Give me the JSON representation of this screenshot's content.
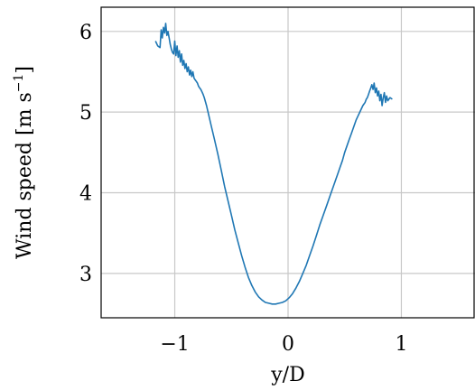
{
  "chart_data": {
    "type": "line",
    "title": "",
    "xlabel": "y/D",
    "ylabel_main": "Wind speed [m s",
    "ylabel_exp": "−1",
    "ylabel_close": "]",
    "xlim": [
      -1.65,
      1.65
    ],
    "ylim": [
      2.45,
      6.3
    ],
    "xticks": [
      {
        "value": -1,
        "label": "−1"
      },
      {
        "value": 0,
        "label": "0"
      },
      {
        "value": 1,
        "label": "1"
      }
    ],
    "yticks": [
      {
        "value": 3,
        "label": "3"
      },
      {
        "value": 4,
        "label": "4"
      },
      {
        "value": 5,
        "label": "5"
      },
      {
        "value": 6,
        "label": "6"
      }
    ],
    "grid": true,
    "series_color": "#1f77b4",
    "series": [
      {
        "x": [
          -1.17,
          -1.15,
          -1.13,
          -1.12,
          -1.11,
          -1.1,
          -1.09,
          -1.08,
          -1.07,
          -1.06,
          -1.05,
          -1.04,
          -1.03,
          -1.02,
          -1.01,
          -1.0,
          -0.99,
          -0.98,
          -0.97,
          -0.96,
          -0.95,
          -0.94,
          -0.93,
          -0.92,
          -0.91,
          -0.9,
          -0.89,
          -0.88,
          -0.87,
          -0.86,
          -0.85,
          -0.84,
          -0.83,
          -0.82,
          -0.81,
          -0.8,
          -0.79,
          -0.78,
          -0.77,
          -0.76,
          -0.75,
          -0.74,
          -0.72,
          -0.7,
          -0.68,
          -0.65,
          -0.62,
          -0.59,
          -0.56,
          -0.53,
          -0.5,
          -0.47,
          -0.44,
          -0.41,
          -0.38,
          -0.35,
          -0.32,
          -0.29,
          -0.26,
          -0.23,
          -0.2,
          -0.17,
          -0.14,
          -0.11,
          -0.08,
          -0.05,
          -0.02,
          0.01,
          0.04,
          0.07,
          0.1,
          0.13,
          0.16,
          0.19,
          0.22,
          0.25,
          0.28,
          0.31,
          0.34,
          0.37,
          0.4,
          0.42,
          0.44,
          0.46,
          0.48,
          0.5,
          0.52,
          0.54,
          0.56,
          0.58,
          0.6,
          0.62,
          0.64,
          0.66,
          0.68,
          0.69,
          0.7,
          0.71,
          0.72,
          0.73,
          0.74,
          0.75,
          0.76,
          0.77,
          0.78,
          0.79,
          0.8,
          0.81,
          0.82,
          0.83,
          0.84,
          0.85,
          0.86,
          0.87,
          0.88,
          0.9,
          0.92
        ],
        "y": [
          5.88,
          5.82,
          5.8,
          6.02,
          5.92,
          6.05,
          5.98,
          6.1,
          5.95,
          6.0,
          5.92,
          5.84,
          5.78,
          5.74,
          5.72,
          5.88,
          5.7,
          5.82,
          5.68,
          5.76,
          5.62,
          5.72,
          5.58,
          5.64,
          5.54,
          5.6,
          5.5,
          5.56,
          5.46,
          5.52,
          5.44,
          5.5,
          5.42,
          5.4,
          5.38,
          5.36,
          5.32,
          5.3,
          5.28,
          5.25,
          5.22,
          5.18,
          5.08,
          4.96,
          4.84,
          4.66,
          4.48,
          4.28,
          4.08,
          3.9,
          3.72,
          3.54,
          3.38,
          3.22,
          3.08,
          2.95,
          2.85,
          2.77,
          2.71,
          2.67,
          2.64,
          2.63,
          2.62,
          2.62,
          2.63,
          2.64,
          2.66,
          2.7,
          2.75,
          2.82,
          2.9,
          3.0,
          3.1,
          3.22,
          3.34,
          3.47,
          3.6,
          3.72,
          3.84,
          3.96,
          4.08,
          4.16,
          4.24,
          4.32,
          4.4,
          4.5,
          4.58,
          4.66,
          4.74,
          4.82,
          4.9,
          4.96,
          5.02,
          5.08,
          5.12,
          5.16,
          5.18,
          5.22,
          5.26,
          5.3,
          5.34,
          5.28,
          5.36,
          5.24,
          5.3,
          5.2,
          5.26,
          5.14,
          5.22,
          5.08,
          5.18,
          5.24,
          5.12,
          5.2,
          5.14,
          5.18,
          5.16
        ]
      }
    ]
  }
}
